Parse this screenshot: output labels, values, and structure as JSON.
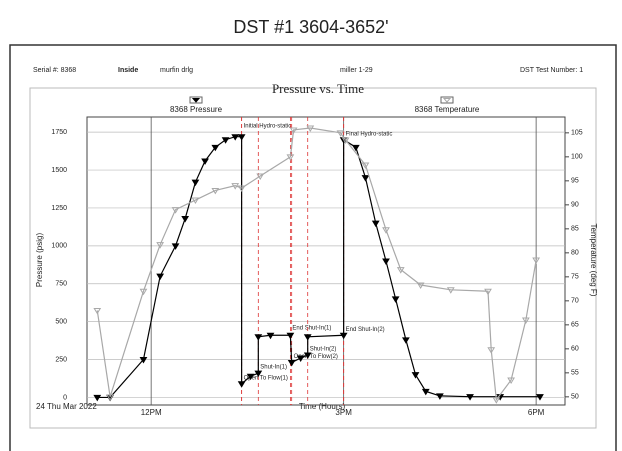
{
  "page_title": "DST #1 3604-3652'",
  "header": {
    "serial": "Serial #: 8368",
    "position": "Inside",
    "company": "murfin drlg",
    "well": "miller 1-29",
    "test_number": "DST Test Number: 1"
  },
  "chart_data": {
    "type": "line",
    "title": "Pressure vs. Time",
    "x_label": "Time (Hours)",
    "y_label": "Pressure (psig)",
    "y2_label": "Temperature (deg F)",
    "date_label": "24 Thu Mar 2022",
    "xlim": [
      11,
      18.45
    ],
    "xticks": [
      {
        "value": 12,
        "label": "12PM"
      },
      {
        "value": 15,
        "label": "3PM"
      },
      {
        "value": 18,
        "label": "6PM"
      }
    ],
    "ylim": [
      -50,
      1850
    ],
    "yticks": [
      0,
      250,
      500,
      750,
      1000,
      1250,
      1500,
      1750
    ],
    "y2lim": [
      48.3,
      108.3
    ],
    "y2ticks": [
      50,
      55,
      60,
      65,
      70,
      75,
      80,
      85,
      90,
      95,
      100,
      105
    ],
    "grid": true,
    "series": [
      {
        "name": "8368 Pressure",
        "color": "#000000",
        "x": [
          11.16,
          11.36,
          11.88,
          12.14,
          12.38,
          12.53,
          12.69,
          12.84,
          13.0,
          13.16,
          13.31,
          13.41,
          13.41,
          13.55,
          13.67,
          13.67,
          13.86,
          14.17,
          14.19,
          14.33,
          14.44,
          14.44,
          15.0,
          15.0,
          15.19,
          15.34,
          15.5,
          15.66,
          15.81,
          15.97,
          16.12,
          16.28,
          16.5,
          16.97,
          17.44,
          18.06
        ],
        "values": [
          0,
          0,
          250,
          800,
          1000,
          1180,
          1420,
          1560,
          1650,
          1700,
          1720,
          1720,
          90,
          140,
          160,
          400,
          410,
          410,
          230,
          260,
          280,
          400,
          410,
          1700,
          1650,
          1450,
          1150,
          900,
          650,
          380,
          150,
          40,
          10,
          5,
          5,
          5
        ]
      },
      {
        "name": "8368 Temperature",
        "color": "#a8a8a8",
        "axis": "y2",
        "x": [
          11.16,
          11.36,
          11.88,
          12.14,
          12.38,
          12.69,
          13.0,
          13.31,
          13.41,
          13.7,
          14.17,
          14.22,
          14.48,
          14.95,
          15.03,
          15.34,
          15.66,
          15.89,
          16.2,
          16.67,
          17.25,
          17.3,
          17.38,
          17.61,
          17.84,
          18.0
        ],
        "values": [
          68,
          50,
          72,
          81.7,
          89,
          91,
          93,
          94,
          93.5,
          96,
          100,
          105.6,
          106,
          105,
          103.5,
          98.3,
          84.8,
          76.5,
          73.3,
          72.3,
          72,
          59.8,
          49.4,
          53.5,
          66,
          78.5
        ]
      }
    ],
    "events": [
      {
        "label": "Initial Hydro-static",
        "x": 13.41,
        "y": 1750
      },
      {
        "label": "Open To Flow(1)",
        "x": 13.41,
        "y": 90
      },
      {
        "label": "Shut-In(1)",
        "x": 13.67,
        "y": 160
      },
      {
        "label": "End Shut-In(1)",
        "x": 14.17,
        "y": 420
      },
      {
        "label": "Open To Flow(2)",
        "x": 14.19,
        "y": 230
      },
      {
        "label": "Shut-In(2)",
        "x": 14.44,
        "y": 280
      },
      {
        "label": "End Shut-In(2)",
        "x": 15.0,
        "y": 410
      },
      {
        "label": "Final Hydro-static",
        "x": 15.0,
        "y": 1700
      }
    ]
  }
}
